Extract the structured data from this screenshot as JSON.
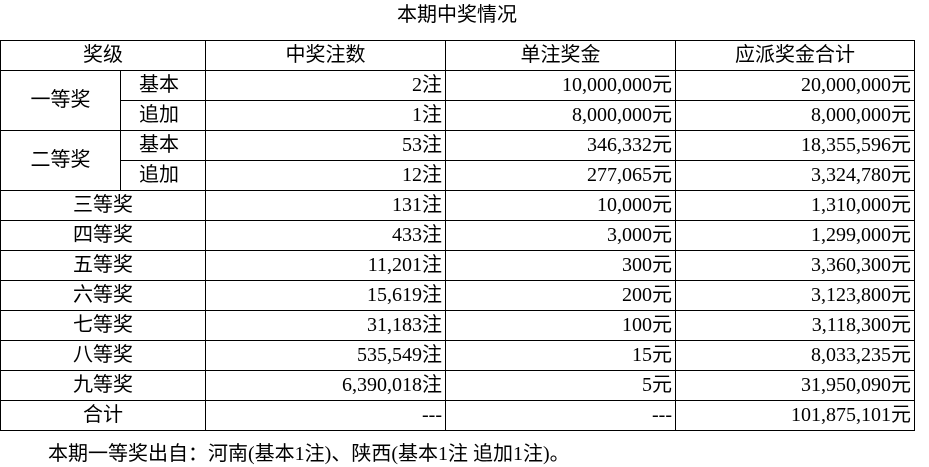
{
  "title": "本期中奖情况",
  "table": {
    "header": [
      "奖级",
      "中奖注数",
      "单注奖金",
      "应派奖金合计"
    ],
    "rows": [
      {
        "level": "一等奖",
        "sub": "基本",
        "count": "2注",
        "prize": "10,000,000元",
        "total": "20,000,000元"
      },
      {
        "sub": "追加",
        "count": "1注",
        "prize": "8,000,000元",
        "total": "8,000,000元"
      },
      {
        "level": "二等奖",
        "sub": "基本",
        "count": "53注",
        "prize": "346,332元",
        "total": "18,355,596元"
      },
      {
        "sub": "追加",
        "count": "12注",
        "prize": "277,065元",
        "total": "3,324,780元"
      },
      {
        "level": "三等奖",
        "count": "131注",
        "prize": "10,000元",
        "total": "1,310,000元"
      },
      {
        "level": "四等奖",
        "count": "433注",
        "prize": "3,000元",
        "total": "1,299,000元"
      },
      {
        "level": "五等奖",
        "count": "11,201注",
        "prize": "300元",
        "total": "3,360,300元"
      },
      {
        "level": "六等奖",
        "count": "15,619注",
        "prize": "200元",
        "total": "3,123,800元"
      },
      {
        "level": "七等奖",
        "count": "31,183注",
        "prize": "100元",
        "total": "3,118,300元"
      },
      {
        "level": "八等奖",
        "count": "535,549注",
        "prize": "15元",
        "total": "8,033,235元"
      },
      {
        "level": "九等奖",
        "count": "6,390,018注",
        "prize": "5元",
        "total": "31,950,090元"
      },
      {
        "level": "合计",
        "count": "---",
        "prize": "---",
        "total": "101,875,101元"
      }
    ]
  },
  "footer": "本期一等奖出自：河南(基本1注)、陕西(基本1注 追加1注)。"
}
